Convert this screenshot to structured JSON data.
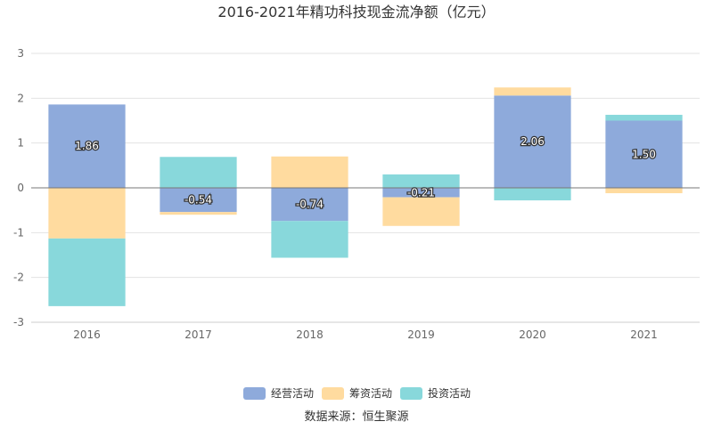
{
  "chart_data": {
    "type": "bar",
    "stacked": true,
    "title": "2016-2021年精功科技现金流净额（亿元）",
    "categories": [
      "2016",
      "2017",
      "2018",
      "2019",
      "2020",
      "2021"
    ],
    "ylim": [
      -3,
      3
    ],
    "yticks": [
      -3,
      -2,
      -1,
      0,
      1,
      2,
      3
    ],
    "grid": true,
    "legend_position": "bottom",
    "series": [
      {
        "name": "经营活动",
        "color": "#8eaadb",
        "values": [
          1.86,
          -0.54,
          -0.74,
          -0.21,
          2.06,
          1.5
        ]
      },
      {
        "name": "筹资活动",
        "color": "#ffdb9f",
        "values": [
          -1.13,
          -0.06,
          0.7,
          -0.64,
          0.18,
          -0.12
        ]
      },
      {
        "name": "投资活动",
        "color": "#88d8db",
        "values": [
          -1.51,
          0.69,
          -0.82,
          0.3,
          -0.28,
          0.13
        ]
      }
    ],
    "data_labels": [
      "1.86",
      "-0.54",
      "-0.74",
      "-0.21",
      "2.06",
      "1.50"
    ],
    "source": "数据来源：恒生聚源"
  }
}
